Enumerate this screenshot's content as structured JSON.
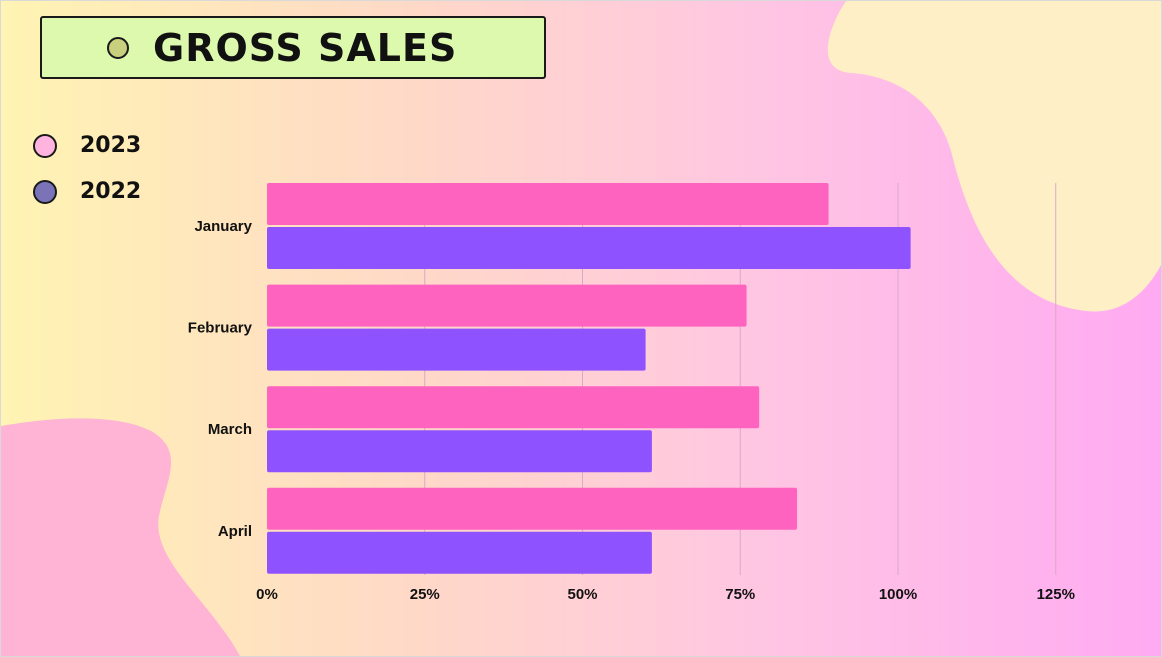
{
  "title": "GROSS SALES",
  "colors": {
    "title_box": "#dcf9ae",
    "title_dot": "#c8cf7d",
    "series_2023": "#ff63c0",
    "series_2022": "#8f52ff",
    "blob_cream": "#ffefc6",
    "blob_pink": "#ffb4d6",
    "gridline": "#d9a9c9"
  },
  "legend": [
    {
      "label": "2023",
      "color": "#ffb3df"
    },
    {
      "label": "2022",
      "color": "#7a73b8"
    }
  ],
  "chart_data": {
    "type": "bar",
    "orientation": "horizontal",
    "categories": [
      "January",
      "February",
      "March",
      "April"
    ],
    "series": [
      {
        "name": "2023",
        "color": "#ff63c0",
        "values": [
          89,
          76,
          78,
          84
        ]
      },
      {
        "name": "2022",
        "color": "#8f52ff",
        "values": [
          102,
          60,
          61,
          61
        ]
      }
    ],
    "x_ticks": [
      "0%",
      "25%",
      "50%",
      "75%",
      "100%",
      "125%"
    ],
    "x_tick_values": [
      0,
      25,
      50,
      75,
      100,
      125
    ],
    "xlim": [
      0,
      125
    ],
    "grid": true,
    "legend_position": "top-left",
    "title": "GROSS SALES",
    "xlabel": "",
    "ylabel": ""
  }
}
